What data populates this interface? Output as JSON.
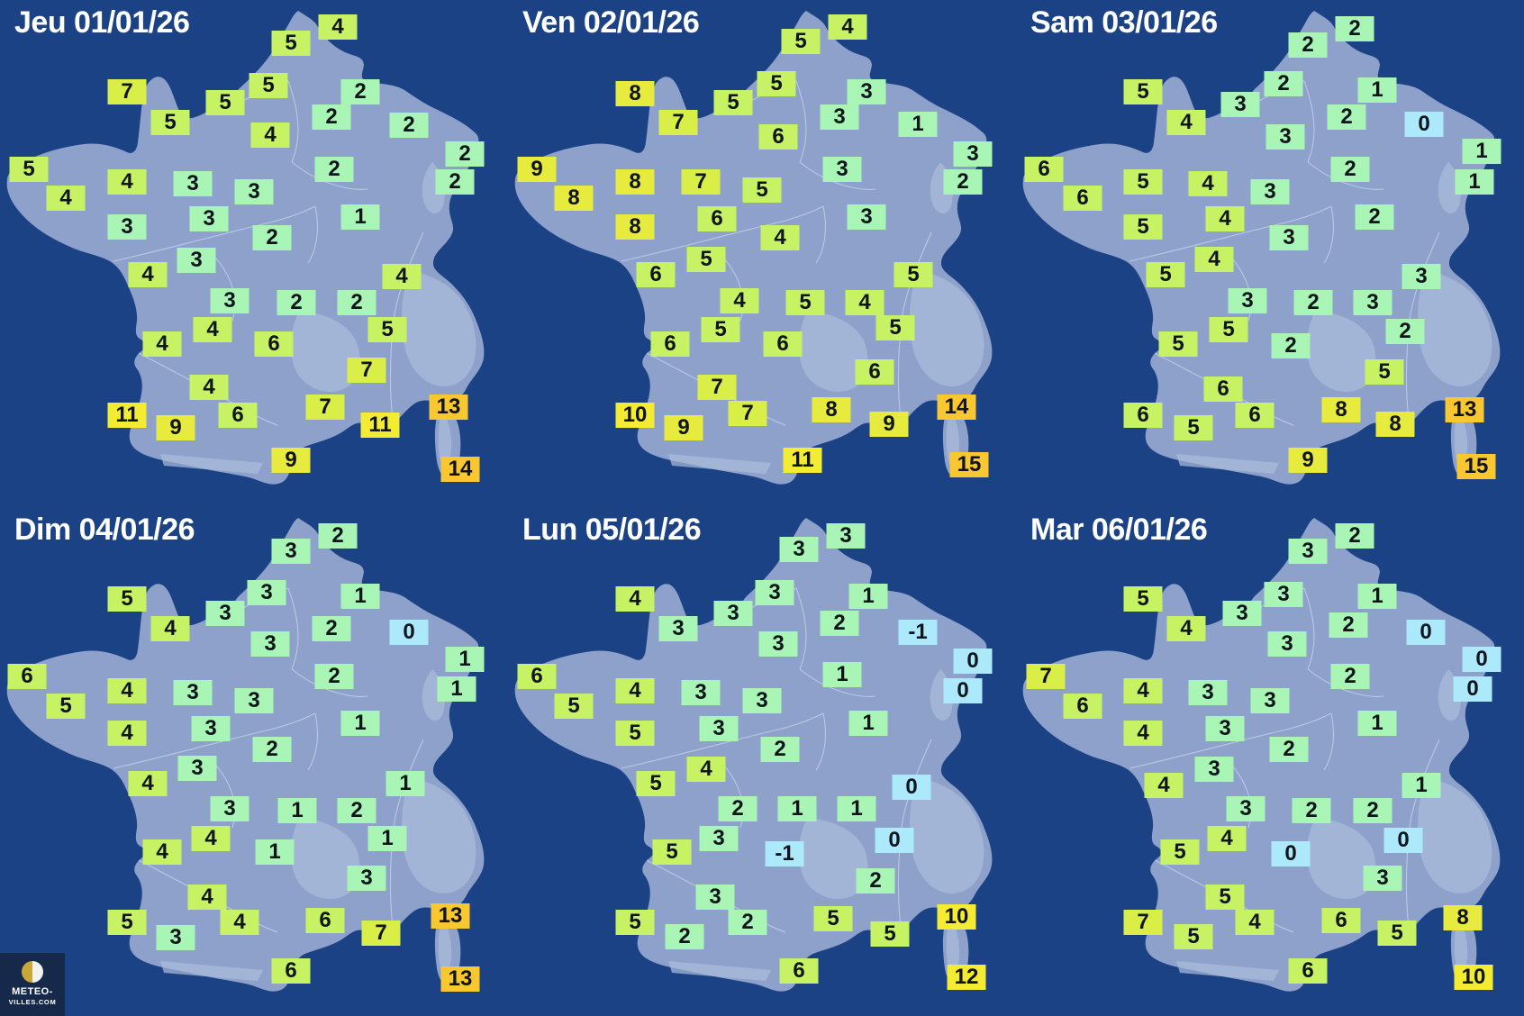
{
  "palette": {
    "background": "#1b4285",
    "land": "#8da1cb",
    "land_texture": "#abbcda",
    "border_lines": "#e9eff9",
    "title_color": "#ffffff",
    "badge_text": "#10141c",
    "blue": "#ace9fb",
    "mint": "#a9f5b5",
    "green": "#c6f263",
    "y7": "#d9ef48",
    "y8": "#e6eb3d",
    "y10": "#f4ec33",
    "gold": "#f9c72f"
  },
  "color_scale": [
    {
      "max": 0,
      "key": "blue"
    },
    {
      "max": 3,
      "key": "mint"
    },
    {
      "max": 6,
      "key": "green"
    },
    {
      "max": 7,
      "key": "y7"
    },
    {
      "max": 9,
      "key": "y8"
    },
    {
      "max": 12,
      "key": "y10"
    },
    {
      "max": 99,
      "key": "gold"
    }
  ],
  "temps_format": [
    "x",
    "y",
    "temperature_celsius"
  ],
  "logo": {
    "line1": "METEO-",
    "line2": "VILLES.COM"
  },
  "maps": [
    {
      "title": "Jeu 01/01/26",
      "col": 0,
      "row": 0,
      "temps": [
        [
          375,
          30,
          4
        ],
        [
          323,
          48,
          5
        ],
        [
          298,
          95,
          5
        ],
        [
          400,
          102,
          2
        ],
        [
          141,
          102,
          7
        ],
        [
          250,
          114,
          5
        ],
        [
          368,
          130,
          2
        ],
        [
          189,
          136,
          5
        ],
        [
          454,
          139,
          2
        ],
        [
          300,
          150,
          4
        ],
        [
          516,
          171,
          2
        ],
        [
          32,
          188,
          5
        ],
        [
          371,
          188,
          2
        ],
        [
          141,
          202,
          4
        ],
        [
          214,
          204,
          3
        ],
        [
          505,
          202,
          2
        ],
        [
          73,
          220,
          4
        ],
        [
          282,
          213,
          3
        ],
        [
          400,
          241,
          1
        ],
        [
          232,
          243,
          3
        ],
        [
          141,
          252,
          3
        ],
        [
          302,
          264,
          2
        ],
        [
          218,
          289,
          3
        ],
        [
          164,
          305,
          4
        ],
        [
          446,
          307,
          4
        ],
        [
          255,
          334,
          3
        ],
        [
          329,
          336,
          2
        ],
        [
          396,
          336,
          2
        ],
        [
          236,
          366,
          4
        ],
        [
          430,
          366,
          5
        ],
        [
          180,
          382,
          4
        ],
        [
          304,
          382,
          6
        ],
        [
          407,
          411,
          7
        ],
        [
          232,
          430,
          4
        ],
        [
          141,
          461,
          11
        ],
        [
          361,
          452,
          7
        ],
        [
          498,
          452,
          13
        ],
        [
          195,
          475,
          9
        ],
        [
          264,
          461,
          6
        ],
        [
          422,
          472,
          11
        ],
        [
          323,
          511,
          9
        ],
        [
          511,
          521,
          14
        ]
      ]
    },
    {
      "title": "Ven 02/01/26",
      "col": 1,
      "row": 0,
      "temps": [
        [
          377,
          30,
          4
        ],
        [
          325,
          46,
          5
        ],
        [
          298,
          93,
          5
        ],
        [
          398,
          102,
          3
        ],
        [
          141,
          104,
          8
        ],
        [
          250,
          114,
          5
        ],
        [
          368,
          130,
          3
        ],
        [
          189,
          136,
          7
        ],
        [
          455,
          138,
          1
        ],
        [
          300,
          152,
          6
        ],
        [
          516,
          171,
          3
        ],
        [
          32,
          188,
          9
        ],
        [
          371,
          188,
          3
        ],
        [
          141,
          202,
          8
        ],
        [
          214,
          202,
          7
        ],
        [
          505,
          202,
          2
        ],
        [
          73,
          220,
          8
        ],
        [
          282,
          211,
          5
        ],
        [
          398,
          241,
          3
        ],
        [
          232,
          243,
          6
        ],
        [
          141,
          252,
          8
        ],
        [
          302,
          264,
          4
        ],
        [
          220,
          288,
          5
        ],
        [
          164,
          305,
          6
        ],
        [
          450,
          305,
          5
        ],
        [
          257,
          334,
          4
        ],
        [
          330,
          336,
          5
        ],
        [
          396,
          336,
          4
        ],
        [
          236,
          366,
          5
        ],
        [
          430,
          364,
          5
        ],
        [
          180,
          382,
          6
        ],
        [
          305,
          382,
          6
        ],
        [
          407,
          413,
          6
        ],
        [
          232,
          430,
          7
        ],
        [
          141,
          461,
          10
        ],
        [
          266,
          459,
          7
        ],
        [
          359,
          455,
          8
        ],
        [
          498,
          452,
          14
        ],
        [
          195,
          475,
          9
        ],
        [
          423,
          471,
          9
        ],
        [
          327,
          511,
          11
        ],
        [
          512,
          516,
          15
        ]
      ]
    },
    {
      "title": "Sam 03/01/26",
      "col": 2,
      "row": 0,
      "temps": [
        [
          376,
          32,
          2
        ],
        [
          324,
          50,
          2
        ],
        [
          297,
          93,
          2
        ],
        [
          401,
          100,
          1
        ],
        [
          141,
          102,
          5
        ],
        [
          249,
          116,
          3
        ],
        [
          367,
          130,
          2
        ],
        [
          453,
          138,
          0
        ],
        [
          189,
          136,
          4
        ],
        [
          299,
          152,
          3
        ],
        [
          517,
          168,
          1
        ],
        [
          371,
          188,
          2
        ],
        [
          31,
          188,
          6
        ],
        [
          141,
          202,
          5
        ],
        [
          213,
          204,
          4
        ],
        [
          509,
          202,
          1
        ],
        [
          74,
          220,
          6
        ],
        [
          282,
          213,
          3
        ],
        [
          398,
          241,
          2
        ],
        [
          232,
          243,
          4
        ],
        [
          141,
          252,
          5
        ],
        [
          303,
          264,
          3
        ],
        [
          220,
          288,
          4
        ],
        [
          166,
          305,
          5
        ],
        [
          450,
          307,
          3
        ],
        [
          257,
          334,
          3
        ],
        [
          330,
          336,
          2
        ],
        [
          396,
          336,
          3
        ],
        [
          236,
          366,
          5
        ],
        [
          432,
          368,
          2
        ],
        [
          180,
          382,
          5
        ],
        [
          305,
          384,
          2
        ],
        [
          409,
          413,
          5
        ],
        [
          230,
          432,
          6
        ],
        [
          141,
          461,
          6
        ],
        [
          361,
          455,
          8
        ],
        [
          498,
          455,
          13
        ],
        [
          421,
          471,
          8
        ],
        [
          197,
          475,
          5
        ],
        [
          265,
          461,
          6
        ],
        [
          324,
          511,
          9
        ],
        [
          511,
          518,
          15
        ]
      ]
    },
    {
      "title": "Dim 04/01/26",
      "col": 0,
      "row": 1,
      "temps": [
        [
          375,
          32,
          2
        ],
        [
          323,
          49,
          3
        ],
        [
          296,
          95,
          3
        ],
        [
          400,
          99,
          1
        ],
        [
          141,
          102,
          5
        ],
        [
          250,
          118,
          3
        ],
        [
          368,
          135,
          2
        ],
        [
          454,
          139,
          0
        ],
        [
          189,
          135,
          4
        ],
        [
          300,
          152,
          3
        ],
        [
          516,
          169,
          1
        ],
        [
          30,
          188,
          6
        ],
        [
          371,
          188,
          2
        ],
        [
          507,
          202,
          1
        ],
        [
          141,
          204,
          4
        ],
        [
          214,
          206,
          3
        ],
        [
          282,
          215,
          3
        ],
        [
          73,
          221,
          5
        ],
        [
          234,
          246,
          3
        ],
        [
          400,
          240,
          1
        ],
        [
          141,
          251,
          4
        ],
        [
          302,
          269,
          2
        ],
        [
          219,
          290,
          3
        ],
        [
          164,
          307,
          4
        ],
        [
          450,
          307,
          1
        ],
        [
          255,
          335,
          3
        ],
        [
          330,
          337,
          1
        ],
        [
          396,
          337,
          2
        ],
        [
          234,
          368,
          4
        ],
        [
          430,
          368,
          1
        ],
        [
          180,
          383,
          4
        ],
        [
          305,
          383,
          1
        ],
        [
          407,
          412,
          3
        ],
        [
          230,
          433,
          4
        ],
        [
          141,
          461,
          5
        ],
        [
          266,
          461,
          4
        ],
        [
          361,
          459,
          6
        ],
        [
          500,
          454,
          13
        ],
        [
          423,
          473,
          7
        ],
        [
          195,
          478,
          3
        ],
        [
          323,
          515,
          6
        ],
        [
          511,
          524,
          13
        ]
      ]
    },
    {
      "title": "Lun 05/01/26",
      "col": 1,
      "row": 1,
      "temps": [
        [
          375,
          32,
          3
        ],
        [
          323,
          47,
          3
        ],
        [
          296,
          95,
          3
        ],
        [
          400,
          99,
          1
        ],
        [
          141,
          102,
          4
        ],
        [
          250,
          118,
          3
        ],
        [
          368,
          129,
          2
        ],
        [
          455,
          139,
          -1
        ],
        [
          189,
          135,
          3
        ],
        [
          300,
          152,
          3
        ],
        [
          516,
          171,
          0
        ],
        [
          32,
          188,
          6
        ],
        [
          371,
          186,
          1
        ],
        [
          505,
          204,
          0
        ],
        [
          141,
          204,
          4
        ],
        [
          214,
          206,
          3
        ],
        [
          282,
          215,
          3
        ],
        [
          73,
          221,
          5
        ],
        [
          234,
          246,
          3
        ],
        [
          400,
          240,
          1
        ],
        [
          141,
          251,
          5
        ],
        [
          302,
          269,
          2
        ],
        [
          220,
          291,
          4
        ],
        [
          164,
          307,
          5
        ],
        [
          448,
          311,
          0
        ],
        [
          255,
          335,
          2
        ],
        [
          321,
          335,
          1
        ],
        [
          387,
          335,
          1
        ],
        [
          234,
          368,
          3
        ],
        [
          429,
          370,
          0
        ],
        [
          182,
          383,
          5
        ],
        [
          307,
          385,
          -1
        ],
        [
          408,
          415,
          2
        ],
        [
          230,
          433,
          3
        ],
        [
          141,
          461,
          5
        ],
        [
          266,
          461,
          2
        ],
        [
          361,
          457,
          5
        ],
        [
          498,
          455,
          10
        ],
        [
          424,
          474,
          5
        ],
        [
          196,
          477,
          2
        ],
        [
          323,
          515,
          6
        ],
        [
          509,
          522,
          12
        ]
      ]
    },
    {
      "title": "Mar 06/01/26",
      "col": 2,
      "row": 1,
      "temps": [
        [
          376,
          32,
          2
        ],
        [
          324,
          49,
          3
        ],
        [
          297,
          97,
          3
        ],
        [
          401,
          99,
          1
        ],
        [
          141,
          102,
          5
        ],
        [
          251,
          118,
          3
        ],
        [
          369,
          131,
          2
        ],
        [
          455,
          139,
          0
        ],
        [
          189,
          135,
          4
        ],
        [
          301,
          152,
          3
        ],
        [
          517,
          169,
          0
        ],
        [
          371,
          188,
          2
        ],
        [
          507,
          202,
          0
        ],
        [
          33,
          188,
          7
        ],
        [
          141,
          204,
          4
        ],
        [
          213,
          206,
          3
        ],
        [
          282,
          215,
          3
        ],
        [
          74,
          221,
          6
        ],
        [
          232,
          246,
          3
        ],
        [
          401,
          240,
          1
        ],
        [
          141,
          251,
          4
        ],
        [
          303,
          269,
          2
        ],
        [
          220,
          291,
          3
        ],
        [
          164,
          309,
          4
        ],
        [
          450,
          309,
          1
        ],
        [
          255,
          335,
          3
        ],
        [
          328,
          337,
          2
        ],
        [
          396,
          337,
          2
        ],
        [
          234,
          368,
          4
        ],
        [
          430,
          370,
          0
        ],
        [
          182,
          383,
          5
        ],
        [
          305,
          385,
          0
        ],
        [
          407,
          412,
          3
        ],
        [
          232,
          433,
          5
        ],
        [
          141,
          461,
          7
        ],
        [
          265,
          461,
          4
        ],
        [
          361,
          459,
          6
        ],
        [
          496,
          456,
          8
        ],
        [
          197,
          477,
          5
        ],
        [
          423,
          473,
          5
        ],
        [
          324,
          515,
          6
        ],
        [
          508,
          522,
          10
        ]
      ]
    }
  ]
}
